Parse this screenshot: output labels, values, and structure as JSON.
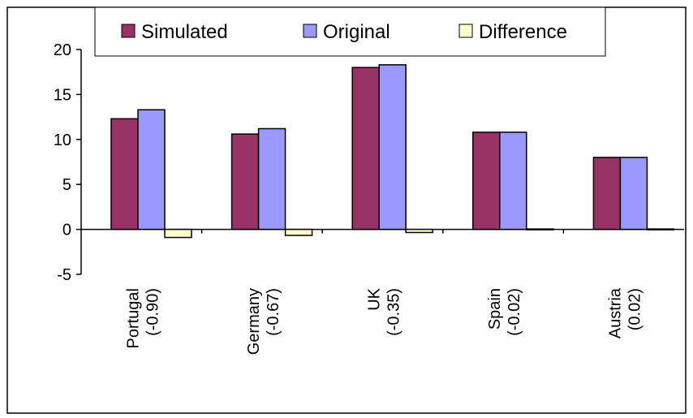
{
  "chart_data": {
    "type": "bar",
    "title": "",
    "xlabel": "",
    "ylabel": "",
    "ylim": [
      -5,
      20
    ],
    "yticks": [
      20,
      15,
      10,
      5,
      0,
      -5
    ],
    "grid": false,
    "legend_position": "top",
    "categories": [
      [
        "Portugal",
        "(-0.90)"
      ],
      [
        "Germany",
        "(-0.67)"
      ],
      [
        "UK",
        "(-0.35)"
      ],
      [
        "Spain",
        "(-0.02)"
      ],
      [
        "Austria",
        "(0.02)"
      ]
    ],
    "series": [
      {
        "name": "Simulated",
        "color": "#993366",
        "values": [
          12.3,
          10.6,
          18.0,
          10.8,
          8.0
        ]
      },
      {
        "name": "Original",
        "color": "#9999ff",
        "values": [
          13.3,
          11.2,
          18.3,
          10.8,
          8.0
        ]
      },
      {
        "name": "Difference",
        "color": "#ffffcc",
        "values": [
          -0.9,
          -0.67,
          -0.35,
          -0.02,
          0.02
        ]
      }
    ]
  }
}
